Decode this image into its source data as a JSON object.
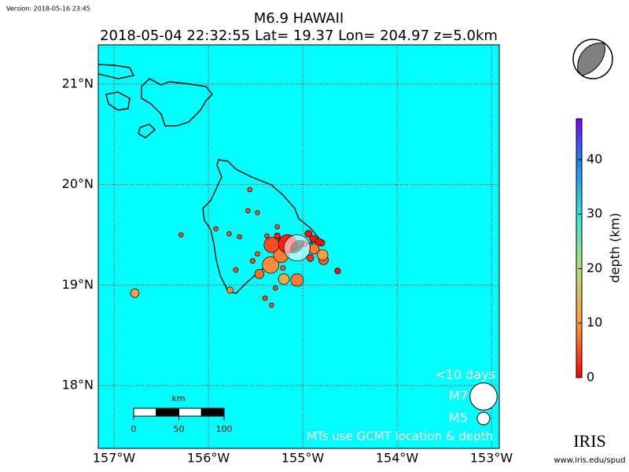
{
  "version": "Version: 2018-05-16 23:45",
  "title": "M6.9 HAWAII",
  "subtitle": "2018-05-04 22:32:55 Lat= 19.37 Lon= 204.97 z=5.0km",
  "map": {
    "xlim": [
      -157.167,
      -152.917
    ],
    "ylim": [
      17.375,
      21.39
    ],
    "xticks": [
      {
        "value": -157,
        "label": "157°W"
      },
      {
        "value": -156,
        "label": "156°W"
      },
      {
        "value": -155,
        "label": "155°W"
      },
      {
        "value": -154,
        "label": "154°W"
      },
      {
        "value": -153,
        "label": "153°W"
      }
    ],
    "yticks": [
      {
        "value": 21,
        "label": "21°N"
      },
      {
        "value": 20,
        "label": "20°N"
      },
      {
        "value": 19,
        "label": "19°N"
      },
      {
        "value": 18,
        "label": "18°N"
      }
    ],
    "grid": true,
    "events": [
      {
        "lon": -155.06,
        "lat": 19.37,
        "depth": 5,
        "magnitude": 6.9
      },
      {
        "lon": -155.16,
        "lat": 19.41,
        "depth": 2,
        "magnitude": 6.0
      },
      {
        "lon": -155.33,
        "lat": 19.4,
        "depth": 5,
        "magnitude": 5.5
      },
      {
        "lon": -155.23,
        "lat": 19.3,
        "depth": 8,
        "magnitude": 5.5
      },
      {
        "lon": -155.34,
        "lat": 19.2,
        "depth": 9,
        "magnitude": 5.7
      },
      {
        "lon": -155.06,
        "lat": 19.05,
        "depth": 8,
        "magnitude": 5.0
      },
      {
        "lon": -155.2,
        "lat": 19.06,
        "depth": 12,
        "magnitude": 4.6
      },
      {
        "lon": -154.79,
        "lat": 19.3,
        "depth": 10,
        "magnitude": 4.6
      },
      {
        "lon": -154.88,
        "lat": 19.36,
        "depth": 8,
        "magnitude": 4.5
      },
      {
        "lon": -154.78,
        "lat": 19.25,
        "depth": 6,
        "magnitude": 4.3
      },
      {
        "lon": -155.46,
        "lat": 19.11,
        "depth": 7,
        "magnitude": 4.2
      },
      {
        "lon": -156.78,
        "lat": 18.92,
        "depth": 11,
        "magnitude": 4.0
      },
      {
        "lon": -154.63,
        "lat": 19.14,
        "depth": 1,
        "magnitude": 3.0
      },
      {
        "lon": -154.89,
        "lat": 19.46,
        "depth": 1,
        "magnitude": 3.5
      },
      {
        "lon": -154.83,
        "lat": 19.43,
        "depth": 1,
        "magnitude": 3.5
      },
      {
        "lon": -154.94,
        "lat": 19.51,
        "depth": 1,
        "magnitude": 3.5
      },
      {
        "lon": -154.8,
        "lat": 19.42,
        "depth": 2,
        "magnitude": 3.3
      },
      {
        "lon": -154.92,
        "lat": 19.27,
        "depth": 3,
        "magnitude": 3.5
      },
      {
        "lon": -155.27,
        "lat": 19.49,
        "depth": 2,
        "magnitude": 3.0
      },
      {
        "lon": -155.23,
        "lat": 19.45,
        "depth": 3,
        "magnitude": 2.8
      },
      {
        "lon": -154.98,
        "lat": 19.41,
        "depth": 2,
        "magnitude": 3.0
      },
      {
        "lon": -155.77,
        "lat": 18.95,
        "depth": 9,
        "magnitude": 3.2
      },
      {
        "lon": -155.21,
        "lat": 19.17,
        "depth": 6,
        "magnitude": 2.6
      },
      {
        "lon": -155.48,
        "lat": 19.31,
        "depth": 5,
        "magnitude": 2.5
      },
      {
        "lon": -155.53,
        "lat": 19.24,
        "depth": 5,
        "magnitude": 2.5
      },
      {
        "lon": -155.71,
        "lat": 19.15,
        "depth": 5,
        "magnitude": 2.5
      },
      {
        "lon": -155.4,
        "lat": 18.87,
        "depth": 5,
        "magnitude": 2.5
      },
      {
        "lon": -155.33,
        "lat": 18.8,
        "depth": 5,
        "magnitude": 2.3
      },
      {
        "lon": -155.29,
        "lat": 18.97,
        "depth": 5,
        "magnitude": 2.4
      },
      {
        "lon": -155.56,
        "lat": 19.95,
        "depth": 5,
        "magnitude": 2.4
      },
      {
        "lon": -155.58,
        "lat": 19.74,
        "depth": 5,
        "magnitude": 2.3
      },
      {
        "lon": -155.48,
        "lat": 19.72,
        "depth": 5,
        "magnitude": 2.3
      },
      {
        "lon": -155.27,
        "lat": 19.58,
        "depth": 5,
        "magnitude": 2.3
      },
      {
        "lon": -155.38,
        "lat": 19.49,
        "depth": 5,
        "magnitude": 2.3
      },
      {
        "lon": -155.67,
        "lat": 19.48,
        "depth": 5,
        "magnitude": 2.3
      },
      {
        "lon": -155.78,
        "lat": 19.51,
        "depth": 5,
        "magnitude": 2.3
      },
      {
        "lon": -155.92,
        "lat": 19.56,
        "depth": 5,
        "magnitude": 2.3
      },
      {
        "lon": -156.29,
        "lat": 19.5,
        "depth": 5,
        "magnitude": 2.3
      }
    ]
  },
  "colorbar": {
    "label": "depth (km)",
    "clim": [
      0,
      47.5
    ],
    "ticks": [
      0,
      10,
      20,
      30,
      40
    ]
  },
  "legend": {
    "title": "<10 days",
    "entries": [
      {
        "label": "M7",
        "magnitude": 7
      },
      {
        "label": "M5",
        "magnitude": 5
      }
    ],
    "note": "MTs use GCMT location & depth"
  },
  "scale_bar": {
    "unit": "km",
    "ticks": [
      0,
      50,
      100
    ]
  },
  "logo": {
    "name": "IRIS",
    "url": "www.iris.edu/spud"
  }
}
